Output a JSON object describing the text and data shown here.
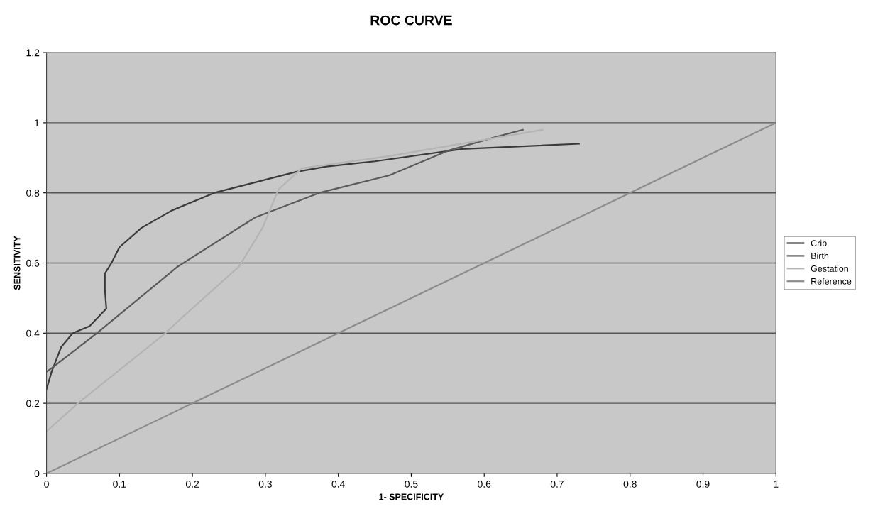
{
  "chart_data": {
    "type": "line",
    "title": "ROC CURVE",
    "xlabel": "1- SPECIFICITY",
    "ylabel": "SENSITIVITY",
    "xlim": [
      0,
      1
    ],
    "ylim": [
      0,
      1.2
    ],
    "xticks": [
      0,
      0.1,
      0.2,
      0.3,
      0.4,
      0.5,
      0.6,
      0.7,
      0.8,
      0.9,
      1
    ],
    "yticks": [
      0,
      0.2,
      0.4,
      0.6,
      0.8,
      1,
      1.2
    ],
    "grid": "y",
    "legend": "right",
    "marker": "none",
    "line_style": "solid",
    "series": [
      {
        "name": "Crib",
        "color": "#3a3a3a",
        "x": [
          0,
          0.007,
          0.02,
          0.036,
          0.059,
          0.082,
          0.08,
          0.08,
          0.089,
          0.1,
          0.13,
          0.172,
          0.23,
          0.286,
          0.342,
          0.384,
          0.45,
          0.57,
          0.73
        ],
        "values": [
          0.24,
          0.29,
          0.36,
          0.4,
          0.42,
          0.47,
          0.525,
          0.57,
          0.6,
          0.645,
          0.7,
          0.75,
          0.8,
          0.83,
          0.86,
          0.875,
          0.89,
          0.925,
          0.94
        ]
      },
      {
        "name": "Birth",
        "color": "#5a5a5a",
        "x": [
          0,
          0.007,
          0.069,
          0.18,
          0.286,
          0.374,
          0.47,
          0.55,
          0.617,
          0.653
        ],
        "values": [
          0.29,
          0.3,
          0.4,
          0.59,
          0.73,
          0.8,
          0.85,
          0.92,
          0.96,
          0.98
        ]
      },
      {
        "name": "Gestation",
        "color": "#b4b4b4",
        "x": [
          0,
          0.043,
          0.163,
          0.186,
          0.264,
          0.296,
          0.318,
          0.35,
          0.47,
          0.68
        ],
        "values": [
          0.12,
          0.2,
          0.4,
          0.445,
          0.59,
          0.7,
          0.81,
          0.87,
          0.905,
          0.98
        ]
      },
      {
        "name": "Reference",
        "color": "#8c8c8c",
        "x": [
          0,
          1
        ],
        "values": [
          0,
          1
        ]
      }
    ]
  }
}
